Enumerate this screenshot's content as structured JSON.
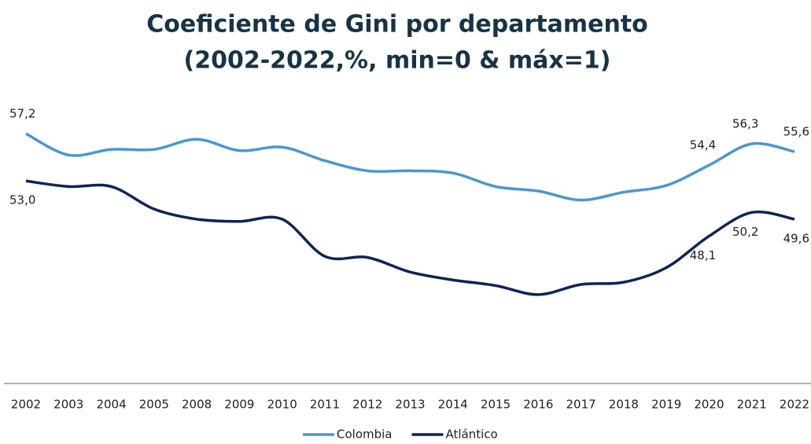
{
  "chart_data": {
    "type": "line",
    "title": "Coeficiente de Gini por departamento",
    "subtitle": "(2002-2022,%, min=0 & máx=1)",
    "categories": [
      "2002",
      "2003",
      "2004",
      "2005",
      "2008",
      "2009",
      "2010",
      "2011",
      "2012",
      "2013",
      "2014",
      "2015",
      "2016",
      "2017",
      "2018",
      "2019",
      "2020",
      "2021",
      "2022"
    ],
    "series": [
      {
        "name": "Colombia",
        "color": "#4a97d1",
        "values": [
          57.2,
          55.3,
          55.8,
          55.8,
          56.7,
          55.7,
          56.0,
          54.8,
          53.9,
          53.9,
          53.7,
          52.5,
          52.1,
          51.3,
          52.0,
          52.6,
          54.4,
          56.3,
          55.6
        ],
        "value_labels": [
          "57,2",
          null,
          null,
          null,
          null,
          null,
          null,
          null,
          null,
          null,
          null,
          null,
          null,
          null,
          null,
          null,
          "54,4",
          "56,3",
          "55,6"
        ]
      },
      {
        "name": "Atlántico",
        "color": "#0d2456",
        "values": [
          53.0,
          52.5,
          52.5,
          50.5,
          49.6,
          49.4,
          49.6,
          46.3,
          46.2,
          44.9,
          44.2,
          43.7,
          42.9,
          43.8,
          44.0,
          45.3,
          48.1,
          50.2,
          49.6
        ],
        "value_labels": [
          "53,0",
          null,
          null,
          null,
          null,
          null,
          null,
          null,
          null,
          null,
          null,
          null,
          null,
          null,
          null,
          null,
          "48,1",
          "50,2",
          "49,6"
        ]
      }
    ],
    "ylim": [
      35,
      60
    ],
    "legend": "bottom"
  }
}
